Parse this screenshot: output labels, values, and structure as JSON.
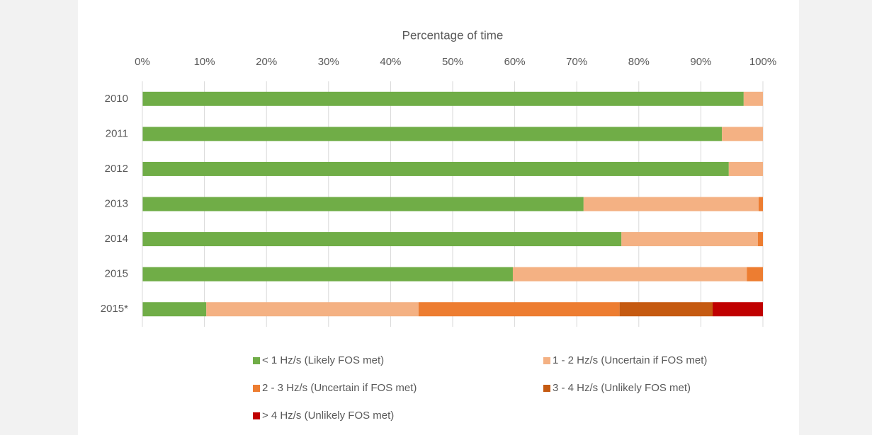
{
  "chart_data": {
    "type": "stacked-bar-horizontal",
    "x_axis_title": "Percentage of time",
    "categories": [
      "2010",
      "2011",
      "2012",
      "2013",
      "2014",
      "2015",
      "2015*"
    ],
    "series": [
      {
        "name": "< 1 Hz/s (Likely FOS met)",
        "color": "#70ad47",
        "values": [
          96.9,
          93.4,
          94.5,
          71.1,
          77.2,
          59.7,
          10.3
        ]
      },
      {
        "name": "1 - 2 Hz/s (Uncertain if FOS met)",
        "color": "#f4b183",
        "values": [
          3.1,
          6.6,
          5.5,
          28.2,
          22.0,
          37.7,
          34.2
        ]
      },
      {
        "name": "2 - 3 Hz/s (Uncertain if FOS met)",
        "color": "#ed7d31",
        "values": [
          0,
          0,
          0,
          0.7,
          0.8,
          2.6,
          32.4
        ]
      },
      {
        "name": "3 - 4 Hz/s (Unlikely FOS met)",
        "color": "#c55a11",
        "values": [
          0,
          0,
          0,
          0,
          0,
          0,
          15.0
        ]
      },
      {
        "name": "> 4 Hz/s (Unlikely FOS met)",
        "color": "#c00000",
        "values": [
          0,
          0,
          0,
          0,
          0,
          0,
          8.1
        ]
      }
    ],
    "xlim": [
      0,
      100
    ],
    "xticks": [
      {
        "value": 0,
        "label": "0%"
      },
      {
        "value": 10,
        "label": "10%"
      },
      {
        "value": 20,
        "label": "20%"
      },
      {
        "value": 30,
        "label": "30%"
      },
      {
        "value": 40,
        "label": "40%"
      },
      {
        "value": 50,
        "label": "50%"
      },
      {
        "value": 60,
        "label": "60%"
      },
      {
        "value": 70,
        "label": "70%"
      },
      {
        "value": 80,
        "label": "80%"
      },
      {
        "value": 90,
        "label": "90%"
      },
      {
        "value": 100,
        "label": "100%"
      }
    ],
    "grid": true,
    "legend": "bottom"
  }
}
